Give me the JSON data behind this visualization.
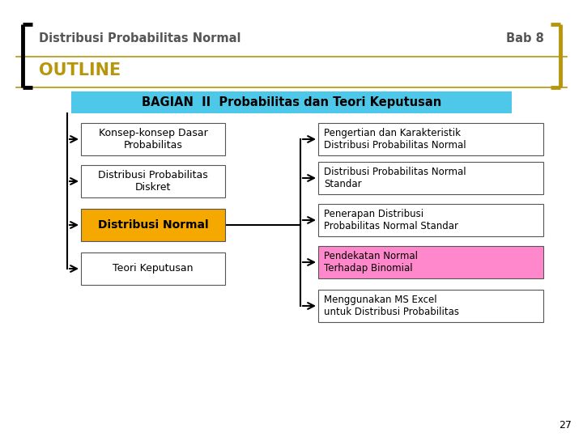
{
  "title_left": "Distribusi Probabilitas Normal",
  "title_right": "Bab 8",
  "outline_text": "OUTLINE",
  "header_text": "BAGIAN  II  Probabilitas dan Teori Keputusan",
  "left_boxes": [
    {
      "text": "Konsep-konsep Dasar\nProbabilitas",
      "bold": false,
      "bg": "#ffffff"
    },
    {
      "text": "Distribusi Probabilitas\nDiskret",
      "bold": false,
      "bg": "#ffffff"
    },
    {
      "text": "Distribusi Normal",
      "bold": true,
      "bg": "#f5a800"
    },
    {
      "text": "Teori Keputusan",
      "bold": false,
      "bg": "#ffffff"
    }
  ],
  "right_boxes": [
    {
      "text": "Pengertian dan Karakteristik\nDistribusi Probabilitas Normal",
      "bg": "#ffffff"
    },
    {
      "text": "Distribusi Probabilitas Normal\nStandar",
      "bg": "#ffffff"
    },
    {
      "text": "Penerapan Distribusi\nProbabilitas Normal Standar",
      "bg": "#ffffff"
    },
    {
      "text": "Pendekatan Normal\nTerhadap Binomial",
      "bg": "#ff88cc"
    },
    {
      "text": "Menggunakan MS Excel\nuntuk Distribusi Probabilitas",
      "bg": "#ffffff"
    }
  ],
  "header_bg": "#4dc8e8",
  "outline_color": "#b8960c",
  "bracket_color": "#b8960c",
  "title_color": "#555555",
  "page_number": "27",
  "bg_color": "#ffffff",
  "line_color": "#000000",
  "box_edge_color": "#555555"
}
